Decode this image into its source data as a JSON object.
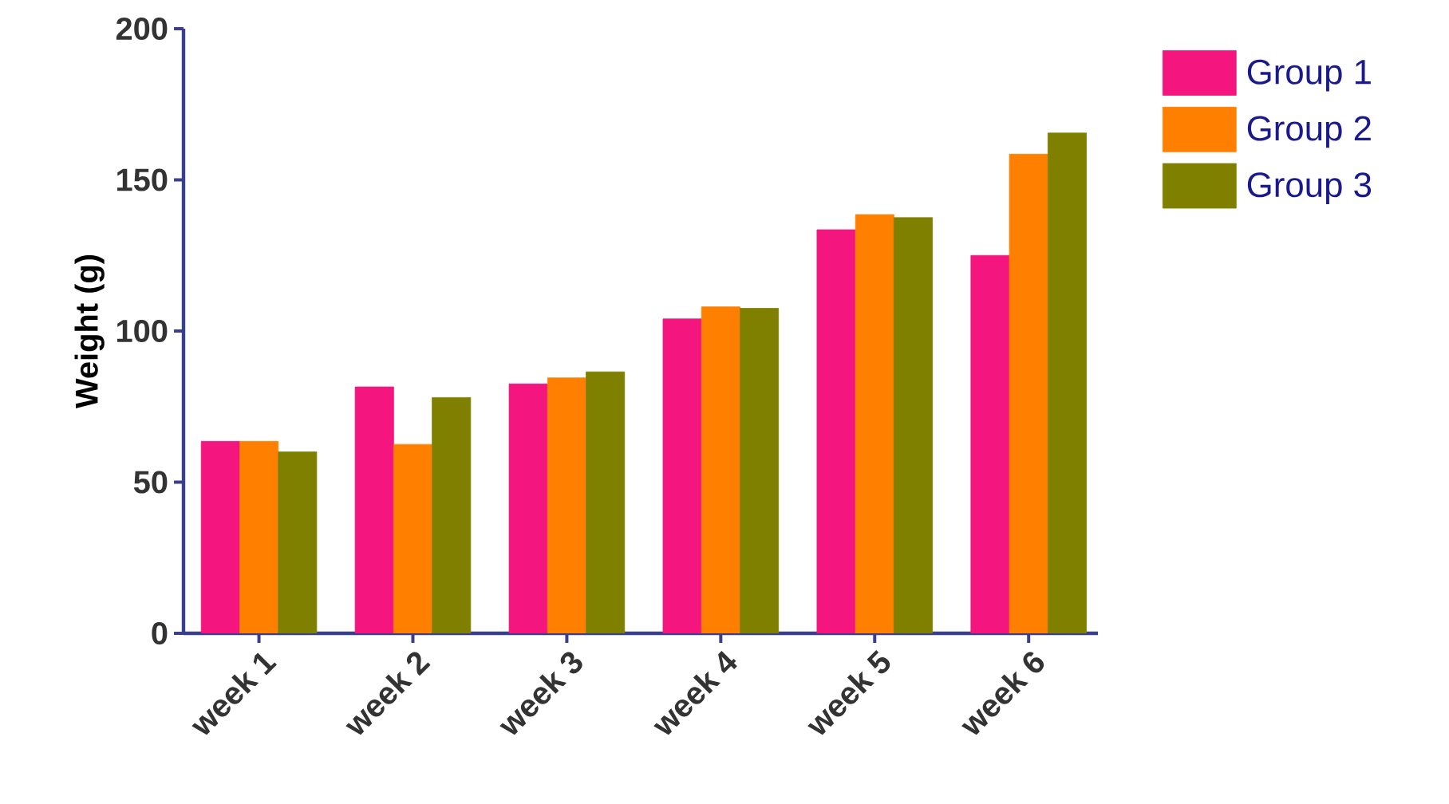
{
  "chart_data": {
    "type": "bar",
    "ylabel": "Weight (g)",
    "categories": [
      "week 1",
      "week 2",
      "week 3",
      "week 4",
      "week 5",
      "week 6"
    ],
    "series": [
      {
        "name": "Group 1",
        "color": "#f5157f",
        "values": [
          63.5,
          81.5,
          82.5,
          104,
          133.5,
          125
        ]
      },
      {
        "name": "Group 2",
        "color": "#ff8000",
        "values": [
          63.5,
          62.5,
          84.5,
          108,
          138.5,
          158.5
        ]
      },
      {
        "name": "Group 3",
        "color": "#808000",
        "values": [
          60,
          78,
          86.5,
          107.5,
          137.5,
          165.5
        ]
      }
    ],
    "ylim": [
      0,
      200
    ],
    "yticks": [
      0,
      50,
      100,
      150,
      200
    ],
    "legend": "top right"
  }
}
